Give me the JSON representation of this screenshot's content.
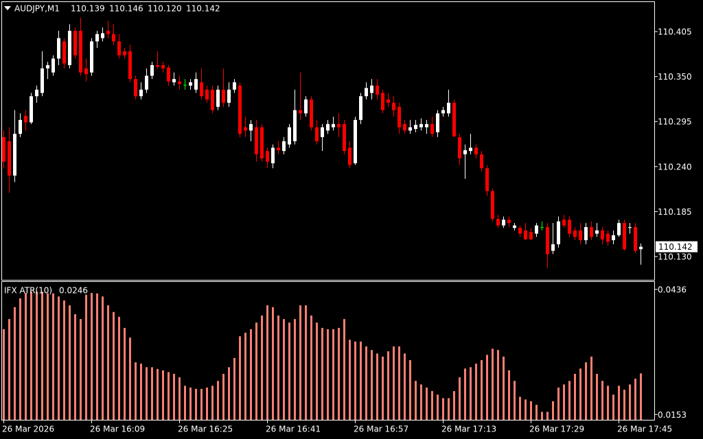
{
  "chart_data": [
    {
      "type": "candlestick",
      "title": "AUDJPY,M1",
      "header_values": [
        "110.139",
        "110.146",
        "110.120",
        "110.142"
      ],
      "open": [
        110.276,
        110.271,
        110.229,
        110.28,
        110.302,
        110.294,
        110.326,
        110.33,
        110.36,
        110.355,
        110.372,
        110.393,
        110.364,
        110.406,
        110.406,
        110.36,
        110.355,
        110.393,
        110.397,
        110.406,
        110.402,
        110.393,
        110.381,
        110.381,
        110.347,
        110.326,
        110.334,
        110.351,
        110.364,
        110.364,
        110.361,
        110.343,
        110.344,
        110.34,
        110.339,
        110.334,
        110.343,
        110.334,
        110.334,
        110.313,
        110.334,
        110.318,
        110.334,
        110.339,
        110.288,
        110.284,
        110.288,
        110.288,
        110.259,
        110.244,
        110.263,
        110.259,
        110.267,
        110.271,
        110.309,
        110.305,
        110.322,
        110.288,
        110.276,
        110.284,
        110.288,
        110.292,
        110.292,
        110.263,
        110.244,
        110.297,
        110.326,
        110.33,
        110.339,
        110.33,
        110.322,
        110.318,
        110.313,
        110.292,
        110.284,
        110.286,
        110.288,
        110.288,
        110.292,
        110.282,
        110.305,
        110.305,
        110.318,
        110.276,
        110.255,
        110.259,
        110.263,
        110.255,
        110.238,
        110.21,
        110.176,
        110.168,
        110.175,
        110.165,
        110.165,
        110.162,
        110.16,
        110.158,
        110.166,
        110.166,
        110.137,
        110.145,
        110.175,
        110.175,
        110.162,
        110.162,
        110.15,
        110.166,
        110.158,
        110.162,
        110.158,
        110.15,
        110.156,
        110.171,
        110.165,
        110.166,
        110.139
      ],
      "high": [
        110.284,
        110.288,
        110.309,
        110.305,
        110.309,
        110.33,
        110.339,
        110.381,
        110.368,
        110.376,
        110.406,
        110.397,
        110.414,
        110.41,
        110.422,
        110.372,
        110.397,
        110.406,
        110.41,
        110.418,
        110.414,
        110.402,
        110.385,
        110.389,
        110.351,
        110.343,
        110.36,
        110.368,
        110.381,
        110.368,
        110.364,
        110.355,
        110.351,
        110.347,
        110.347,
        110.355,
        110.36,
        110.339,
        110.339,
        110.339,
        110.36,
        110.343,
        110.347,
        110.343,
        110.301,
        110.297,
        110.297,
        110.292,
        110.263,
        110.267,
        110.271,
        110.276,
        110.292,
        110.334,
        110.355,
        110.326,
        110.326,
        110.297,
        110.292,
        110.297,
        110.301,
        110.305,
        110.297,
        110.271,
        110.301,
        110.33,
        110.343,
        110.347,
        110.347,
        110.334,
        110.33,
        110.326,
        110.318,
        110.297,
        110.297,
        110.297,
        110.299,
        110.297,
        110.301,
        110.309,
        110.313,
        110.334,
        110.322,
        110.28,
        110.267,
        110.28,
        110.267,
        110.259,
        110.242,
        110.213,
        110.181,
        110.179,
        110.179,
        110.171,
        110.168,
        110.171,
        110.165,
        110.171,
        110.173,
        110.171,
        110.171,
        110.179,
        110.181,
        110.179,
        110.166,
        110.171,
        110.171,
        110.173,
        110.171,
        110.166,
        110.162,
        110.162,
        110.175,
        110.175,
        110.171,
        110.171,
        110.146
      ],
      "low": [
        110.238,
        110.208,
        110.221,
        110.276,
        110.284,
        110.292,
        110.318,
        110.326,
        110.347,
        110.351,
        110.364,
        110.36,
        110.36,
        110.372,
        110.351,
        110.344,
        110.351,
        110.385,
        110.393,
        110.397,
        110.389,
        110.372,
        110.372,
        110.343,
        110.322,
        110.322,
        110.33,
        110.347,
        110.36,
        110.355,
        110.339,
        110.339,
        110.334,
        110.334,
        110.334,
        110.33,
        110.322,
        110.318,
        110.305,
        110.309,
        110.313,
        110.313,
        110.33,
        110.276,
        110.276,
        110.271,
        110.246,
        110.246,
        110.238,
        110.238,
        110.255,
        110.255,
        110.263,
        110.267,
        110.297,
        110.301,
        110.284,
        110.267,
        110.259,
        110.28,
        110.284,
        110.276,
        110.255,
        110.238,
        110.242,
        110.292,
        110.322,
        110.322,
        110.322,
        110.305,
        110.313,
        110.301,
        110.28,
        110.28,
        110.28,
        110.282,
        110.284,
        110.28,
        110.276,
        110.276,
        110.301,
        110.301,
        110.276,
        110.242,
        110.225,
        110.255,
        110.25,
        110.234,
        110.204,
        110.173,
        110.165,
        110.165,
        110.166,
        110.162,
        110.154,
        110.15,
        110.15,
        110.154,
        110.162,
        110.116,
        110.133,
        110.141,
        110.165,
        110.154,
        110.15,
        110.145,
        110.145,
        110.15,
        110.154,
        110.145,
        110.143,
        110.145,
        110.154,
        110.137,
        110.158,
        110.134,
        110.12
      ],
      "close": [
        110.246,
        110.229,
        110.28,
        110.297,
        110.294,
        110.326,
        110.334,
        110.36,
        110.364,
        110.372,
        110.397,
        110.366,
        110.406,
        110.376,
        110.355,
        110.353,
        110.393,
        110.402,
        110.403,
        110.402,
        110.393,
        110.376,
        110.376,
        110.347,
        110.326,
        110.334,
        110.351,
        110.364,
        110.362,
        110.36,
        110.344,
        110.347,
        110.341,
        110.34,
        110.343,
        110.347,
        110.326,
        110.322,
        110.309,
        110.334,
        110.318,
        110.334,
        110.343,
        110.28,
        110.284,
        110.292,
        110.255,
        110.25,
        110.246,
        110.263,
        110.26,
        110.271,
        110.288,
        110.309,
        110.305,
        110.322,
        110.288,
        110.271,
        110.288,
        110.292,
        110.292,
        110.288,
        110.259,
        110.242,
        110.297,
        110.326,
        110.336,
        110.339,
        110.328,
        110.309,
        110.318,
        110.309,
        110.288,
        110.284,
        110.288,
        110.291,
        110.292,
        110.292,
        110.28,
        110.305,
        110.309,
        110.318,
        110.277,
        110.25,
        110.26,
        110.263,
        110.255,
        110.238,
        110.21,
        110.176,
        110.168,
        110.175,
        110.171,
        110.168,
        110.158,
        110.151,
        110.151,
        110.168,
        110.166,
        110.133,
        110.145,
        110.173,
        110.168,
        110.158,
        110.154,
        110.15,
        110.166,
        110.154,
        110.162,
        110.151,
        110.148,
        110.156,
        110.171,
        110.139,
        110.166,
        110.137,
        110.142
      ],
      "up_color": "#ffffff",
      "down_color": "#ff0000",
      "doji_color": "#00ff00",
      "ylim": [
        110.1015,
        110.4411
      ],
      "yticks": [
        110.405,
        {
          "value": 110.35,
          "label": "110.350"
        },
        110.295,
        {
          "value": 110.24,
          "label": "110.240"
        },
        110.185,
        {
          "value": 110.13,
          "label": "110.130"
        }
      ]
    },
    {
      "type": "bar",
      "title": "IFX ATR(10)",
      "color": "#fa8072",
      "categories": [
        "26 Mar 2026",
        null,
        null,
        null,
        null,
        null,
        null,
        null,
        null,
        null,
        null,
        null,
        null,
        null,
        null,
        null,
        "26 Mar 16:09",
        null,
        null,
        null,
        null,
        null,
        null,
        null,
        null,
        null,
        null,
        null,
        null,
        null,
        null,
        null,
        "26 Mar 16:25",
        null,
        null,
        null,
        null,
        null,
        null,
        null,
        null,
        null,
        null,
        null,
        null,
        null,
        null,
        null,
        "26 Mar 16:41",
        null,
        null,
        null,
        null,
        null,
        null,
        null,
        null,
        null,
        null,
        null,
        null,
        null,
        null,
        null,
        "26 Mar 16:57",
        null,
        null,
        null,
        null,
        null,
        null,
        null,
        null,
        null,
        null,
        null,
        null,
        null,
        null,
        null,
        "26 Mar 17:13",
        null,
        null,
        null,
        null,
        null,
        null,
        null,
        null,
        null,
        null,
        null,
        null,
        null,
        null,
        null,
        "26 Mar 17:29",
        null,
        null,
        null,
        null,
        null,
        null,
        null,
        null,
        null,
        null,
        null,
        null,
        null,
        null,
        null,
        "26 Mar 17:45",
        null,
        null,
        null,
        null
      ],
      "values": [
        0.0346,
        0.0369,
        0.0396,
        0.0416,
        0.0428,
        0.0431,
        0.0431,
        0.0431,
        0.0427,
        0.0427,
        0.042,
        0.0411,
        0.04,
        0.038,
        0.0369,
        0.0424,
        0.0428,
        0.0427,
        0.042,
        0.04,
        0.0385,
        0.0374,
        0.0349,
        0.0327,
        0.0271,
        0.0268,
        0.026,
        0.026,
        0.0256,
        0.0253,
        0.0249,
        0.0245,
        0.0237,
        0.0218,
        0.0214,
        0.0211,
        0.0211,
        0.0214,
        0.0218,
        0.0229,
        0.0245,
        0.026,
        0.0281,
        0.033,
        0.0338,
        0.0346,
        0.0361,
        0.0377,
        0.04,
        0.0396,
        0.0377,
        0.0369,
        0.0361,
        0.0369,
        0.04,
        0.04,
        0.0377,
        0.0361,
        0.0349,
        0.0346,
        0.0346,
        0.0349,
        0.0369,
        0.0322,
        0.0318,
        0.0318,
        0.0307,
        0.0299,
        0.0291,
        0.0284,
        0.0296,
        0.0307,
        0.0307,
        0.0291,
        0.0276,
        0.0229,
        0.0221,
        0.0214,
        0.0206,
        0.0198,
        0.019,
        0.019,
        0.0206,
        0.0237,
        0.0257,
        0.026,
        0.0268,
        0.0276,
        0.0288,
        0.0302,
        0.0299,
        0.0284,
        0.0253,
        0.0229,
        0.0193,
        0.0187,
        0.0183,
        0.0175,
        0.0159,
        0.0159,
        0.0183,
        0.0214,
        0.0221,
        0.0229,
        0.0245,
        0.0257,
        0.0271,
        0.0284,
        0.0245,
        0.0229,
        0.0218,
        0.0198,
        0.0218,
        0.0209,
        0.0221,
        0.0234,
        0.0246
      ],
      "ylim": [
        0.0141,
        0.0453
      ],
      "yticks": [
        0.0436,
        0.0153
      ]
    }
  ]
}
